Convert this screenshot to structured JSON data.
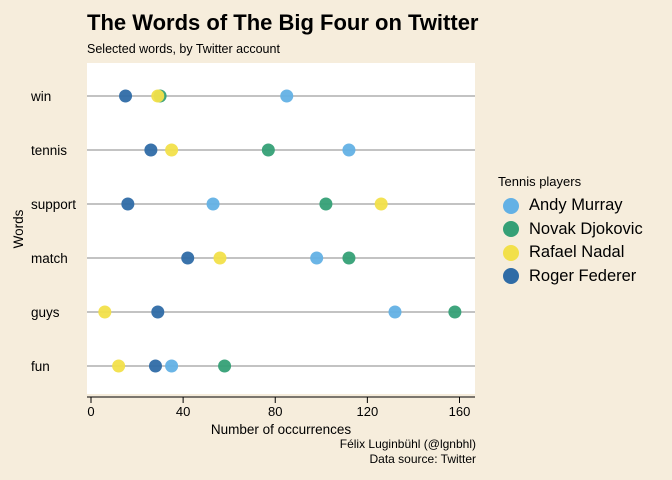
{
  "title": "The Words of The Big Four on Twitter",
  "subtitle": "Selected words, by Twitter account",
  "caption": {
    "author": "Félix Luginbühl (@lgnbhl)",
    "source": "Data source: Twitter"
  },
  "legend_title": "Tennis players",
  "colors": {
    "Andy Murray": "#63b1e5",
    "Novak Djokovic": "#35a076",
    "Rafael Nadal": "#f2e04a",
    "Roger Federer": "#2f6ca6",
    "background": "#f6eddc",
    "panel": "#ffffff",
    "gridline": "#c3c3c3"
  },
  "chart_data": {
    "type": "dot",
    "xlabel": "Number of occurrences",
    "ylabel": "Words",
    "xlim": [
      0,
      165
    ],
    "xticks": [
      0,
      40,
      80,
      120,
      160
    ],
    "categories": [
      "win",
      "tennis",
      "support",
      "match",
      "guys",
      "fun"
    ],
    "series": [
      {
        "name": "Andy Murray",
        "values": [
          85,
          112,
          53,
          98,
          132,
          35
        ]
      },
      {
        "name": "Novak Djokovic",
        "values": [
          30,
          77,
          102,
          112,
          158,
          58
        ]
      },
      {
        "name": "Rafael Nadal",
        "values": [
          29,
          35,
          126,
          56,
          6,
          12
        ]
      },
      {
        "name": "Roger Federer",
        "values": [
          15,
          26,
          16,
          42,
          29,
          28
        ]
      }
    ],
    "legend_position": "right",
    "grid": false
  }
}
